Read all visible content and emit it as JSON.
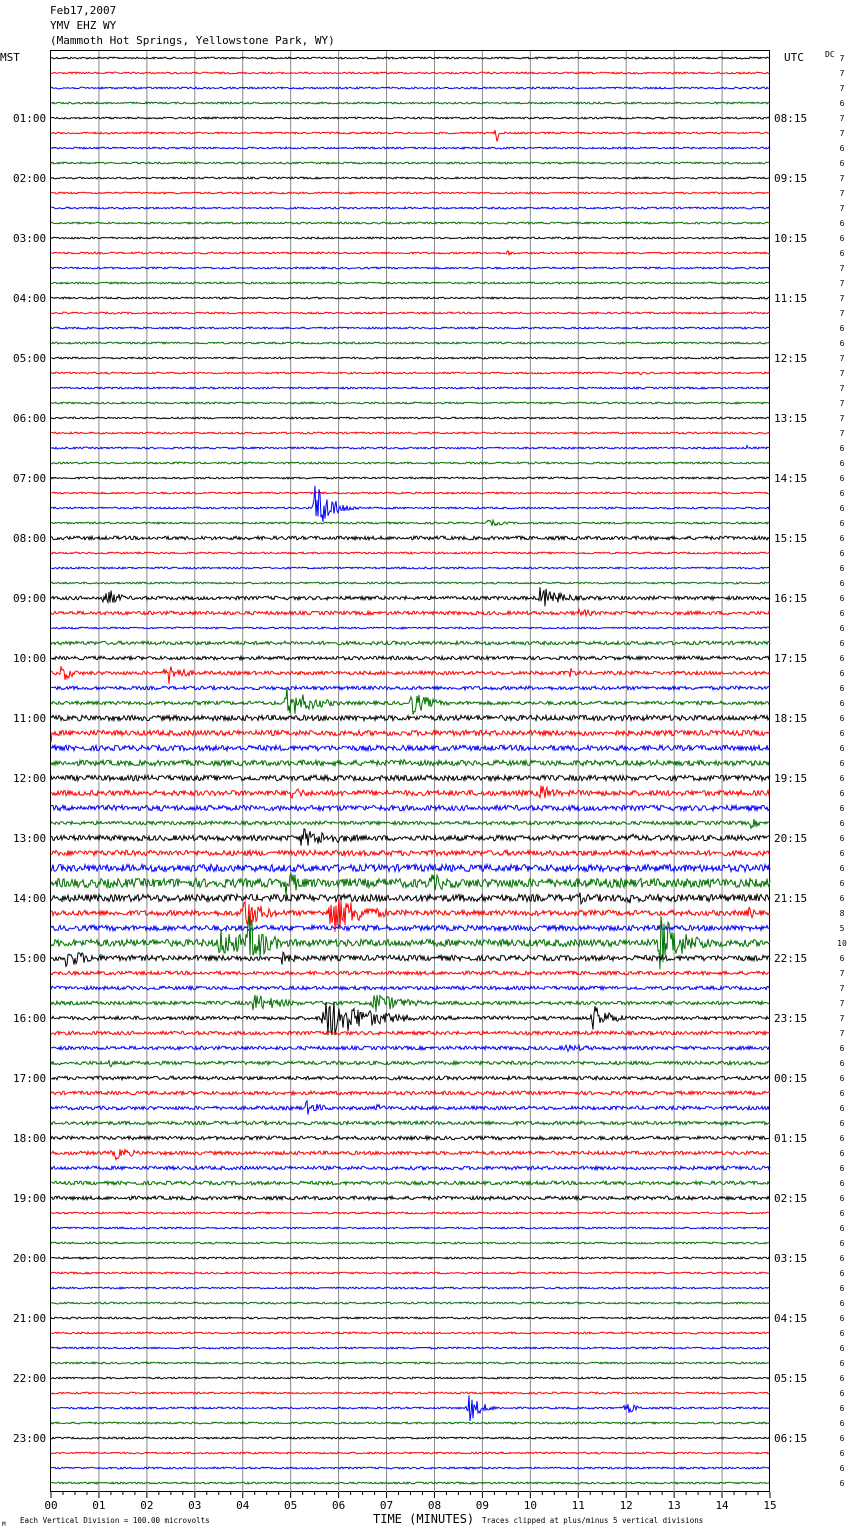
{
  "header": {
    "date": "Feb17,2007",
    "station": "YMV EHZ WY",
    "location": "(Mammoth Hot Springs, Yellowstone Park, WY)"
  },
  "left_timezone": "MST",
  "right_timezone": "UTC",
  "dc_label": "DC",
  "footer": {
    "scale_note": "Each Vertical Division =  100.00 microvolts",
    "xlabel": "TIME (MINUTES)",
    "clip_note": "Traces clipped at plus/minus 5 vertical divisions",
    "corner_mark": "M"
  },
  "chart_data": {
    "type": "line",
    "traces_per_hour": 4,
    "trace_minutes": 15,
    "trace_colors": [
      "#000000",
      "#ff0000",
      "#0000ff",
      "#007000"
    ],
    "x_ticks": [
      "00",
      "01",
      "02",
      "03",
      "04",
      "05",
      "06",
      "07",
      "08",
      "09",
      "10",
      "11",
      "12",
      "13",
      "14",
      "15"
    ],
    "xlim": [
      0,
      15
    ],
    "left_hour_labels": [
      "01:00",
      "02:00",
      "03:00",
      "04:00",
      "05:00",
      "06:00",
      "07:00",
      "08:00",
      "09:00",
      "10:00",
      "11:00",
      "12:00",
      "13:00",
      "14:00",
      "15:00",
      "16:00",
      "17:00",
      "18:00",
      "19:00",
      "20:00",
      "21:00",
      "22:00",
      "23:00"
    ],
    "right_hour_labels": [
      "08:15",
      "09:15",
      "10:15",
      "11:15",
      "12:15",
      "13:15",
      "14:15",
      "15:15",
      "16:15",
      "17:15",
      "18:15",
      "19:15",
      "20:15",
      "21:15",
      "22:15",
      "23:15",
      "00:15",
      "01:15",
      "02:15",
      "03:15",
      "04:15",
      "05:15",
      "06:15"
    ],
    "dc_offsets": [
      7,
      7,
      7,
      6,
      7,
      7,
      6,
      6,
      7,
      7,
      7,
      6,
      6,
      6,
      7,
      7,
      7,
      7,
      6,
      6,
      7,
      7,
      7,
      7,
      7,
      7,
      6,
      6,
      6,
      6,
      6,
      6,
      6,
      6,
      6,
      6,
      6,
      6,
      6,
      6,
      6,
      6,
      6,
      6,
      6,
      6,
      6,
      6,
      6,
      6,
      6,
      6,
      6,
      6,
      6,
      6,
      6,
      8,
      5,
      10,
      6,
      7,
      7,
      7,
      7,
      7,
      6,
      6,
      6,
      6,
      6,
      6,
      6,
      6,
      6,
      6,
      6,
      6,
      6,
      6,
      6,
      6,
      6,
      6,
      6,
      6,
      6,
      6,
      6,
      6,
      6,
      6,
      6,
      6,
      6,
      6
    ],
    "noise_levels": [
      1,
      1,
      1,
      1,
      1,
      1,
      1,
      1,
      1,
      1,
      1,
      1,
      1,
      1,
      1,
      1,
      1,
      1,
      1,
      1,
      1,
      1,
      1,
      1,
      1,
      1,
      1,
      1,
      1,
      1,
      1,
      1,
      2,
      1,
      1,
      1,
      2,
      2,
      1,
      2,
      2,
      2,
      2,
      2,
      3,
      3,
      3,
      3,
      3,
      3,
      3,
      2,
      3,
      3,
      4,
      5,
      4,
      3,
      3,
      4,
      3,
      2,
      2,
      2,
      2,
      2,
      2,
      2,
      2,
      2,
      2,
      2,
      2,
      2,
      2,
      2,
      2,
      1,
      1,
      1,
      1,
      1,
      1,
      1,
      1,
      1,
      1,
      1,
      1,
      1,
      1,
      1,
      1,
      1,
      1,
      1
    ],
    "events": [
      {
        "trace": 5,
        "minute": 9.3,
        "amp": 14,
        "dur": 0.05
      },
      {
        "trace": 13,
        "minute": 9.5,
        "amp": 4,
        "dur": 0.2
      },
      {
        "trace": 13,
        "minute": 15.0,
        "amp": 4,
        "dur": 0.1
      },
      {
        "trace": 21,
        "minute": 12.3,
        "amp": 4,
        "dur": 0.05
      },
      {
        "trace": 26,
        "minute": 14.5,
        "amp": 4,
        "dur": 0.1
      },
      {
        "trace": 30,
        "minute": 5.5,
        "amp": 30,
        "dur": 0.5
      },
      {
        "trace": 31,
        "minute": 9.1,
        "amp": 4,
        "dur": 0.6
      },
      {
        "trace": 36,
        "minute": 1.1,
        "amp": 14,
        "dur": 0.4
      },
      {
        "trace": 36,
        "minute": 10.2,
        "amp": 12,
        "dur": 0.8
      },
      {
        "trace": 37,
        "minute": 11.0,
        "amp": 5,
        "dur": 0.6
      },
      {
        "trace": 41,
        "minute": 0.2,
        "amp": 10,
        "dur": 0.4
      },
      {
        "trace": 41,
        "minute": 2.4,
        "amp": 14,
        "dur": 0.5
      },
      {
        "trace": 41,
        "minute": 10.8,
        "amp": 6,
        "dur": 0.4
      },
      {
        "trace": 43,
        "minute": 4.9,
        "amp": 16,
        "dur": 0.9
      },
      {
        "trace": 43,
        "minute": 7.5,
        "amp": 14,
        "dur": 0.6
      },
      {
        "trace": 45,
        "minute": 0.0,
        "amp": 10,
        "dur": 0.05
      },
      {
        "trace": 47,
        "minute": 7.3,
        "amp": 6,
        "dur": 0.3
      },
      {
        "trace": 49,
        "minute": 5.0,
        "amp": 8,
        "dur": 0.5
      },
      {
        "trace": 49,
        "minute": 10.2,
        "amp": 10,
        "dur": 0.5
      },
      {
        "trace": 51,
        "minute": 14.6,
        "amp": 6,
        "dur": 0.3
      },
      {
        "trace": 52,
        "minute": 5.2,
        "amp": 10,
        "dur": 1.6
      },
      {
        "trace": 52,
        "minute": 12.0,
        "amp": 6,
        "dur": 0.5
      },
      {
        "trace": 55,
        "minute": 4.9,
        "amp": 14,
        "dur": 0.6
      },
      {
        "trace": 55,
        "minute": 7.9,
        "amp": 10,
        "dur": 1.0
      },
      {
        "trace": 56,
        "minute": 11.0,
        "amp": 8,
        "dur": 0.3
      },
      {
        "trace": 56,
        "minute": 12.0,
        "amp": 10,
        "dur": 0.3
      },
      {
        "trace": 57,
        "minute": 4.0,
        "amp": 20,
        "dur": 0.6
      },
      {
        "trace": 57,
        "minute": 5.8,
        "amp": 24,
        "dur": 1.0
      },
      {
        "trace": 57,
        "minute": 14.5,
        "amp": 8,
        "dur": 0.4
      },
      {
        "trace": 59,
        "minute": 3.5,
        "amp": 16,
        "dur": 1.2
      },
      {
        "trace": 59,
        "minute": 4.1,
        "amp": 30,
        "dur": 0.6
      },
      {
        "trace": 59,
        "minute": 12.7,
        "amp": 30,
        "dur": 0.8
      },
      {
        "trace": 59,
        "minute": 13.5,
        "amp": 10,
        "dur": 0.6
      },
      {
        "trace": 60,
        "minute": 0.3,
        "amp": 10,
        "dur": 1.0
      },
      {
        "trace": 60,
        "minute": 4.8,
        "amp": 8,
        "dur": 0.5
      },
      {
        "trace": 63,
        "minute": 4.2,
        "amp": 10,
        "dur": 1.0
      },
      {
        "trace": 63,
        "minute": 6.7,
        "amp": 12,
        "dur": 1.0
      },
      {
        "trace": 64,
        "minute": 5.7,
        "amp": 24,
        "dur": 1.4
      },
      {
        "trace": 64,
        "minute": 11.3,
        "amp": 14,
        "dur": 0.6
      },
      {
        "trace": 66,
        "minute": 10.7,
        "amp": 4,
        "dur": 1.4
      },
      {
        "trace": 67,
        "minute": 1.2,
        "amp": 5,
        "dur": 0.3
      },
      {
        "trace": 70,
        "minute": 5.3,
        "amp": 8,
        "dur": 0.6
      },
      {
        "trace": 70,
        "minute": 6.8,
        "amp": 5,
        "dur": 0.3
      },
      {
        "trace": 73,
        "minute": 1.3,
        "amp": 8,
        "dur": 0.6
      },
      {
        "trace": 90,
        "minute": 8.7,
        "amp": 16,
        "dur": 0.4
      },
      {
        "trace": 90,
        "minute": 12.0,
        "amp": 8,
        "dur": 0.3
      }
    ]
  }
}
